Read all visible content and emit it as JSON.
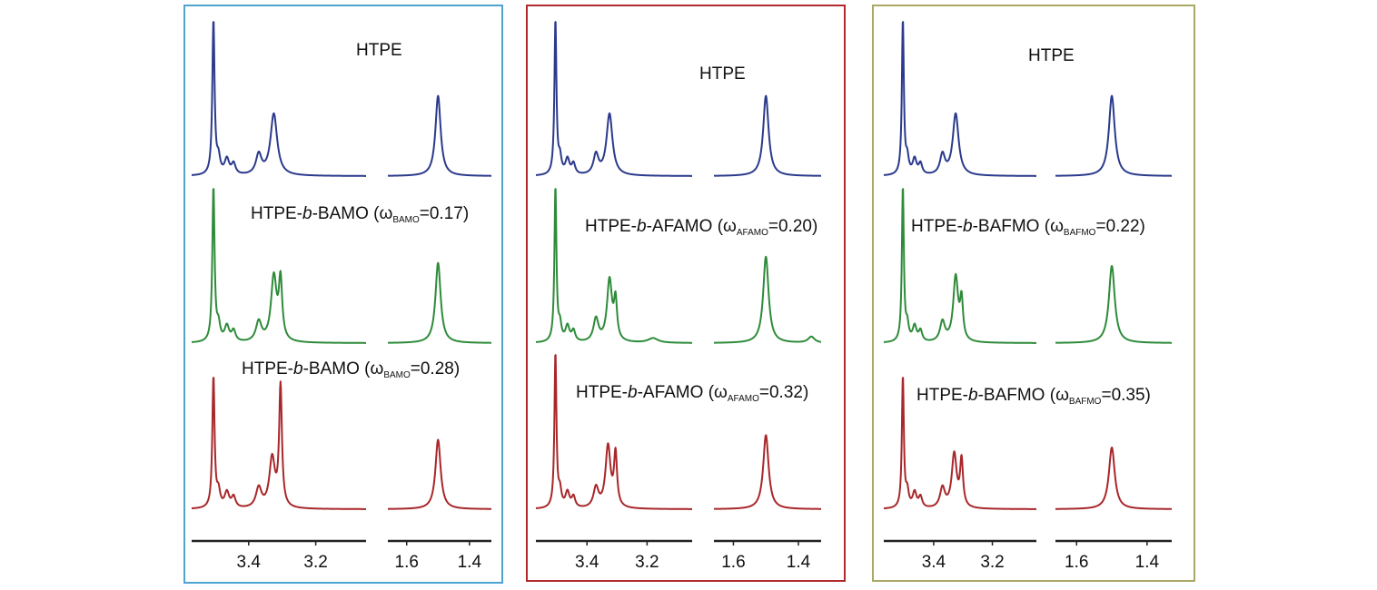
{
  "chart_data": [
    {
      "type": "line",
      "frame_color": "#4fa3d1",
      "x_segments": [
        {
          "xlim": [
            3.57,
            3.05
          ],
          "ticks": [
            "3.4",
            "3.2"
          ],
          "tick_values": [
            3.4,
            3.2
          ]
        },
        {
          "xlim": [
            1.66,
            1.33
          ],
          "ticks": [
            "1.6",
            "1.4"
          ],
          "tick_values": [
            1.6,
            1.4
          ]
        }
      ],
      "series": [
        {
          "color": "#2b3a8c",
          "label": {
            "pre": "HTPE",
            "italic": "",
            "post": "",
            "omega_sub": "",
            "value": ""
          },
          "peaks": [
            {
              "x": 3.505,
              "h": 1.0,
              "w": 0.004
            },
            {
              "x": 3.49,
              "h": 0.1,
              "w": 0.006
            },
            {
              "x": 3.465,
              "h": 0.1,
              "w": 0.008
            },
            {
              "x": 3.445,
              "h": 0.07,
              "w": 0.007
            },
            {
              "x": 3.37,
              "h": 0.13,
              "w": 0.01
            },
            {
              "x": 3.325,
              "h": 0.4,
              "w": 0.012
            },
            {
              "x": 1.5,
              "h": 0.52,
              "w": 0.01
            }
          ]
        },
        {
          "color": "#2e8b3a",
          "label": {
            "pre": "HTPE-",
            "italic": "b",
            "post": "-BAMO (ω",
            "omega_sub": "BAMO",
            "value": "=0.17)"
          },
          "peaks": [
            {
              "x": 3.505,
              "h": 1.0,
              "w": 0.004
            },
            {
              "x": 3.49,
              "h": 0.1,
              "w": 0.006
            },
            {
              "x": 3.465,
              "h": 0.1,
              "w": 0.008
            },
            {
              "x": 3.445,
              "h": 0.07,
              "w": 0.007
            },
            {
              "x": 3.37,
              "h": 0.13,
              "w": 0.01
            },
            {
              "x": 3.325,
              "h": 0.42,
              "w": 0.01
            },
            {
              "x": 3.305,
              "h": 0.38,
              "w": 0.006
            },
            {
              "x": 1.5,
              "h": 0.52,
              "w": 0.01
            }
          ]
        },
        {
          "color": "#a8272a",
          "label": {
            "pre": "HTPE-",
            "italic": "b",
            "post": "-BAMO (ω",
            "omega_sub": "BAMO",
            "value": "=0.28)"
          },
          "peaks": [
            {
              "x": 3.505,
              "h": 0.85,
              "w": 0.004
            },
            {
              "x": 3.49,
              "h": 0.1,
              "w": 0.006
            },
            {
              "x": 3.465,
              "h": 0.1,
              "w": 0.008
            },
            {
              "x": 3.445,
              "h": 0.07,
              "w": 0.007
            },
            {
              "x": 3.37,
              "h": 0.13,
              "w": 0.01
            },
            {
              "x": 3.33,
              "h": 0.32,
              "w": 0.01
            },
            {
              "x": 3.305,
              "h": 0.78,
              "w": 0.005
            },
            {
              "x": 1.5,
              "h": 0.45,
              "w": 0.01
            }
          ]
        }
      ]
    },
    {
      "type": "line",
      "frame_color": "#b0292c",
      "x_segments": [
        {
          "xlim": [
            3.57,
            3.05
          ],
          "ticks": [
            "3.4",
            "3.2"
          ],
          "tick_values": [
            3.4,
            3.2
          ]
        },
        {
          "xlim": [
            1.66,
            1.33
          ],
          "ticks": [
            "1.6",
            "1.4"
          ],
          "tick_values": [
            1.6,
            1.4
          ]
        }
      ],
      "series": [
        {
          "color": "#2b3a8c",
          "label": {
            "pre": "HTPE",
            "italic": "",
            "post": "",
            "omega_sub": "",
            "value": ""
          },
          "peaks": [
            {
              "x": 3.505,
              "h": 1.0,
              "w": 0.004
            },
            {
              "x": 3.49,
              "h": 0.1,
              "w": 0.006
            },
            {
              "x": 3.465,
              "h": 0.1,
              "w": 0.008
            },
            {
              "x": 3.445,
              "h": 0.07,
              "w": 0.007
            },
            {
              "x": 3.37,
              "h": 0.13,
              "w": 0.01
            },
            {
              "x": 3.325,
              "h": 0.4,
              "w": 0.012
            },
            {
              "x": 1.5,
              "h": 0.52,
              "w": 0.01
            }
          ]
        },
        {
          "color": "#2e8b3a",
          "label": {
            "pre": "HTPE-",
            "italic": "b",
            "post": "-AFAMO (ω",
            "omega_sub": "AFAMO",
            "value": "=0.20)"
          },
          "peaks": [
            {
              "x": 3.505,
              "h": 1.0,
              "w": 0.004
            },
            {
              "x": 3.49,
              "h": 0.1,
              "w": 0.006
            },
            {
              "x": 3.465,
              "h": 0.1,
              "w": 0.008
            },
            {
              "x": 3.445,
              "h": 0.07,
              "w": 0.007
            },
            {
              "x": 3.37,
              "h": 0.15,
              "w": 0.01
            },
            {
              "x": 3.325,
              "h": 0.4,
              "w": 0.01
            },
            {
              "x": 3.305,
              "h": 0.25,
              "w": 0.006
            },
            {
              "x": 3.18,
              "h": 0.03,
              "w": 0.02
            },
            {
              "x": 1.5,
              "h": 0.56,
              "w": 0.01
            },
            {
              "x": 1.36,
              "h": 0.04,
              "w": 0.012
            }
          ]
        },
        {
          "color": "#a8272a",
          "label": {
            "pre": "HTPE-",
            "italic": "b",
            "post": "-AFAMO (ω",
            "omega_sub": "AFAMO",
            "value": "=0.32)"
          },
          "peaks": [
            {
              "x": 3.505,
              "h": 1.0,
              "w": 0.004
            },
            {
              "x": 3.49,
              "h": 0.1,
              "w": 0.006
            },
            {
              "x": 3.465,
              "h": 0.1,
              "w": 0.008
            },
            {
              "x": 3.445,
              "h": 0.07,
              "w": 0.007
            },
            {
              "x": 3.37,
              "h": 0.13,
              "w": 0.01
            },
            {
              "x": 3.33,
              "h": 0.4,
              "w": 0.01
            },
            {
              "x": 3.305,
              "h": 0.34,
              "w": 0.006
            },
            {
              "x": 1.5,
              "h": 0.48,
              "w": 0.01
            }
          ]
        }
      ]
    },
    {
      "type": "line",
      "frame_color": "#a9a865",
      "x_segments": [
        {
          "xlim": [
            3.57,
            3.05
          ],
          "ticks": [
            "3.4",
            "3.2"
          ],
          "tick_values": [
            3.4,
            3.2
          ]
        },
        {
          "xlim": [
            1.66,
            1.33
          ],
          "ticks": [
            "1.6",
            "1.4"
          ],
          "tick_values": [
            1.6,
            1.4
          ]
        }
      ],
      "series": [
        {
          "color": "#2b3a8c",
          "label": {
            "pre": "HTPE",
            "italic": "",
            "post": "",
            "omega_sub": "",
            "value": ""
          },
          "peaks": [
            {
              "x": 3.505,
              "h": 1.0,
              "w": 0.004
            },
            {
              "x": 3.49,
              "h": 0.1,
              "w": 0.006
            },
            {
              "x": 3.465,
              "h": 0.1,
              "w": 0.008
            },
            {
              "x": 3.445,
              "h": 0.07,
              "w": 0.007
            },
            {
              "x": 3.37,
              "h": 0.13,
              "w": 0.01
            },
            {
              "x": 3.325,
              "h": 0.4,
              "w": 0.012
            },
            {
              "x": 1.5,
              "h": 0.52,
              "w": 0.01
            }
          ]
        },
        {
          "color": "#2e8b3a",
          "label": {
            "pre": "HTPE-",
            "italic": "b",
            "post": "-BAFMO (ω",
            "omega_sub": "BAFMO",
            "value": "=0.22)"
          },
          "peaks": [
            {
              "x": 3.505,
              "h": 1.0,
              "w": 0.004
            },
            {
              "x": 3.49,
              "h": 0.1,
              "w": 0.006
            },
            {
              "x": 3.465,
              "h": 0.1,
              "w": 0.008
            },
            {
              "x": 3.445,
              "h": 0.07,
              "w": 0.007
            },
            {
              "x": 3.37,
              "h": 0.13,
              "w": 0.01
            },
            {
              "x": 3.325,
              "h": 0.42,
              "w": 0.01
            },
            {
              "x": 3.305,
              "h": 0.25,
              "w": 0.006
            },
            {
              "x": 1.5,
              "h": 0.5,
              "w": 0.01
            }
          ]
        },
        {
          "color": "#a8272a",
          "label": {
            "pre": "HTPE-",
            "italic": "b",
            "post": "-BAFMO (ω",
            "omega_sub": "BAFMO",
            "value": "=0.35)"
          },
          "peaks": [
            {
              "x": 3.505,
              "h": 0.85,
              "w": 0.004
            },
            {
              "x": 3.49,
              "h": 0.1,
              "w": 0.006
            },
            {
              "x": 3.465,
              "h": 0.1,
              "w": 0.008
            },
            {
              "x": 3.445,
              "h": 0.07,
              "w": 0.007
            },
            {
              "x": 3.37,
              "h": 0.13,
              "w": 0.01
            },
            {
              "x": 3.33,
              "h": 0.35,
              "w": 0.01
            },
            {
              "x": 3.305,
              "h": 0.3,
              "w": 0.006
            },
            {
              "x": 1.5,
              "h": 0.4,
              "w": 0.01
            }
          ]
        }
      ]
    }
  ]
}
